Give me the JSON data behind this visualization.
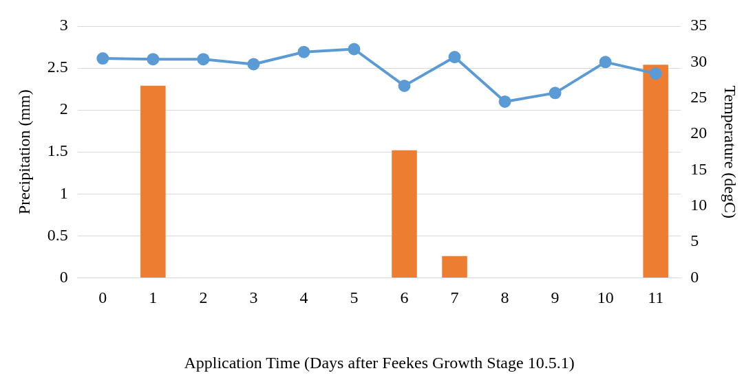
{
  "chart_data": {
    "type": "bar",
    "xlabel": "Application Time (Days after Feekes Growth Stage 10.5.1)",
    "ylabel": "Precipitation (mm)",
    "y2label": "Temperature (degC)",
    "categories": [
      "0",
      "1",
      "2",
      "3",
      "4",
      "5",
      "6",
      "7",
      "8",
      "9",
      "10",
      "11"
    ],
    "series": [
      {
        "color": "#ed7d31",
        "values": [
          0,
          2.29,
          0,
          0,
          0,
          0,
          1.52,
          0.26,
          0,
          0,
          0,
          2.54
        ]
      },
      {
        "type": "line",
        "axis": "y2",
        "color": "#5b9bd5",
        "marker": "circle",
        "values": [
          30.5,
          30.4,
          30.4,
          29.7,
          31.4,
          31.8,
          26.7,
          30.7,
          24.5,
          25.7,
          30.0,
          28.4
        ]
      }
    ],
    "ylim": [
      0,
      3
    ],
    "yticks": [
      0,
      0.5,
      1,
      1.5,
      2,
      2.5,
      3
    ],
    "y2lim": [
      0,
      35
    ],
    "y2ticks": [
      0,
      5,
      10,
      15,
      20,
      25,
      30,
      35
    ],
    "grid": "y",
    "legend": false
  }
}
